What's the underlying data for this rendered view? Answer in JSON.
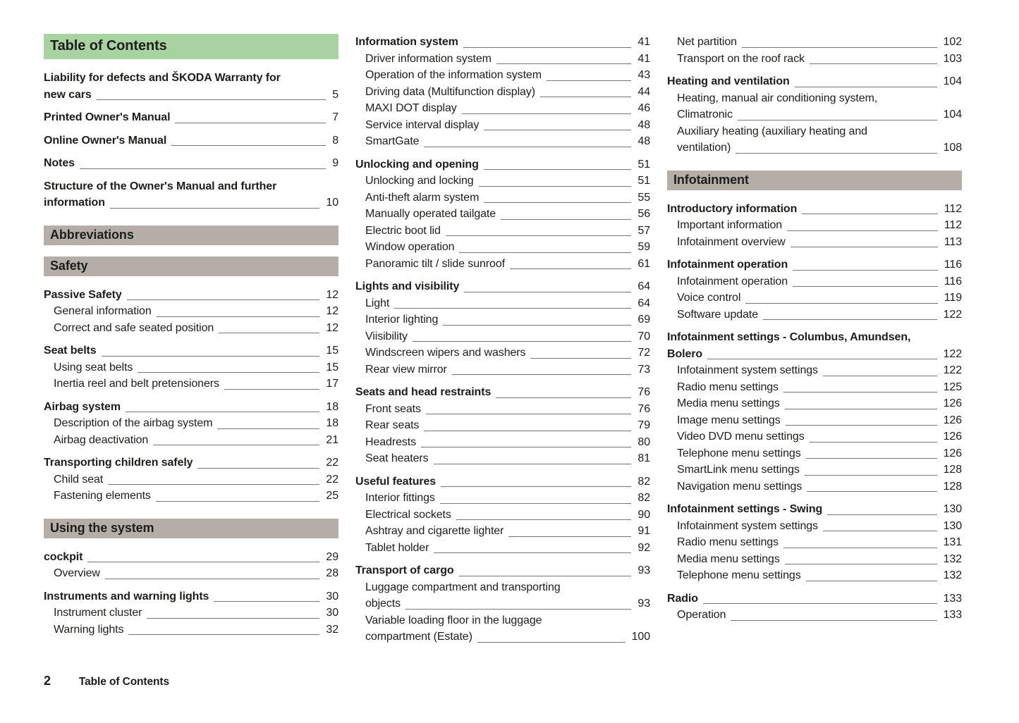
{
  "colors": {
    "title_bar_bg": "#a8d2a2",
    "section_bar_bg": "#b5aea7",
    "leader_line": "#757575",
    "text": "#1d1d1b"
  },
  "footer": {
    "page_number": "2",
    "label": "Table of Contents"
  },
  "columns": [
    {
      "blocks": [
        {
          "bar": "Table of Contents",
          "style": "title"
        },
        {
          "group": [
            {
              "bold": true,
              "lines": [
                "Liability for defects and ŠKODA Warranty for",
                "new cars"
              ],
              "page": "5"
            }
          ]
        },
        {
          "group": [
            {
              "bold": true,
              "lines": [
                "Printed Owner's Manual"
              ],
              "page": "7"
            }
          ]
        },
        {
          "group": [
            {
              "bold": true,
              "lines": [
                "Online Owner's Manual"
              ],
              "page": "8"
            }
          ]
        },
        {
          "group": [
            {
              "bold": true,
              "lines": [
                "Notes"
              ],
              "page": "9"
            }
          ]
        },
        {
          "group": [
            {
              "bold": true,
              "lines": [
                "Structure of the Owner's Manual and further",
                "information"
              ],
              "page": "10"
            }
          ]
        },
        {
          "bar": "Abbreviations",
          "style": "section"
        },
        {
          "bar": "Safety",
          "style": "section"
        },
        {
          "group": [
            {
              "bold": true,
              "lines": [
                "Passive Safety"
              ],
              "page": "12"
            },
            {
              "bold": false,
              "lines": [
                "General information"
              ],
              "page": "12"
            },
            {
              "bold": false,
              "lines": [
                "Correct and safe seated position"
              ],
              "page": "12"
            }
          ]
        },
        {
          "group": [
            {
              "bold": true,
              "lines": [
                "Seat belts"
              ],
              "page": "15"
            },
            {
              "bold": false,
              "lines": [
                "Using seat belts"
              ],
              "page": "15"
            },
            {
              "bold": false,
              "lines": [
                "Inertia reel and belt pretensioners"
              ],
              "page": "17"
            }
          ]
        },
        {
          "group": [
            {
              "bold": true,
              "lines": [
                "Airbag system"
              ],
              "page": "18"
            },
            {
              "bold": false,
              "lines": [
                "Description of the airbag system"
              ],
              "page": "18"
            },
            {
              "bold": false,
              "lines": [
                "Airbag deactivation"
              ],
              "page": "21"
            }
          ]
        },
        {
          "group": [
            {
              "bold": true,
              "lines": [
                "Transporting children safely"
              ],
              "page": "22"
            },
            {
              "bold": false,
              "lines": [
                "Child seat"
              ],
              "page": "22"
            },
            {
              "bold": false,
              "lines": [
                "Fastening elements"
              ],
              "page": "25"
            }
          ]
        },
        {
          "bar": "Using the system",
          "style": "section"
        },
        {
          "group": [
            {
              "bold": true,
              "lines": [
                "cockpit"
              ],
              "page": "29"
            },
            {
              "bold": false,
              "lines": [
                "Overview"
              ],
              "page": "28"
            }
          ]
        },
        {
          "group": [
            {
              "bold": true,
              "lines": [
                "Instruments and warning lights"
              ],
              "page": "30"
            },
            {
              "bold": false,
              "lines": [
                "Instrument cluster"
              ],
              "page": "30"
            },
            {
              "bold": false,
              "lines": [
                "Warning lights"
              ],
              "page": "32"
            }
          ]
        }
      ]
    },
    {
      "blocks": [
        {
          "group": [
            {
              "bold": true,
              "lines": [
                "Information system"
              ],
              "page": "41"
            },
            {
              "bold": false,
              "lines": [
                "Driver information system"
              ],
              "page": "41"
            },
            {
              "bold": false,
              "lines": [
                "Operation of the information system"
              ],
              "page": "43"
            },
            {
              "bold": false,
              "lines": [
                "Driving data (Multifunction display)"
              ],
              "page": "44"
            },
            {
              "bold": false,
              "lines": [
                "MAXI DOT display"
              ],
              "page": "46"
            },
            {
              "bold": false,
              "lines": [
                "Service interval display"
              ],
              "page": "48"
            },
            {
              "bold": false,
              "lines": [
                "SmartGate"
              ],
              "page": "48"
            }
          ]
        },
        {
          "group": [
            {
              "bold": true,
              "lines": [
                "Unlocking and opening"
              ],
              "page": "51"
            },
            {
              "bold": false,
              "lines": [
                "Unlocking and locking"
              ],
              "page": "51"
            },
            {
              "bold": false,
              "lines": [
                "Anti-theft alarm system"
              ],
              "page": "55"
            },
            {
              "bold": false,
              "lines": [
                "Manually operated tailgate"
              ],
              "page": "56"
            },
            {
              "bold": false,
              "lines": [
                "Electric boot lid"
              ],
              "page": "57"
            },
            {
              "bold": false,
              "lines": [
                "Window operation"
              ],
              "page": "59"
            },
            {
              "bold": false,
              "lines": [
                "Panoramic tilt / slide sunroof"
              ],
              "page": "61"
            }
          ]
        },
        {
          "group": [
            {
              "bold": true,
              "lines": [
                "Lights and visibility"
              ],
              "page": "64"
            },
            {
              "bold": false,
              "lines": [
                "Light"
              ],
              "page": "64"
            },
            {
              "bold": false,
              "lines": [
                "Interior lighting"
              ],
              "page": "69"
            },
            {
              "bold": false,
              "lines": [
                "Viisibility"
              ],
              "page": "70"
            },
            {
              "bold": false,
              "lines": [
                "Windscreen wipers and washers"
              ],
              "page": "72"
            },
            {
              "bold": false,
              "lines": [
                "Rear view mirror"
              ],
              "page": "73"
            }
          ]
        },
        {
          "group": [
            {
              "bold": true,
              "lines": [
                "Seats and head restraints"
              ],
              "page": "76"
            },
            {
              "bold": false,
              "lines": [
                "Front seats"
              ],
              "page": "76"
            },
            {
              "bold": false,
              "lines": [
                "Rear seats"
              ],
              "page": "79"
            },
            {
              "bold": false,
              "lines": [
                "Headrests"
              ],
              "page": "80"
            },
            {
              "bold": false,
              "lines": [
                "Seat heaters"
              ],
              "page": "81"
            }
          ]
        },
        {
          "group": [
            {
              "bold": true,
              "lines": [
                "Useful features"
              ],
              "page": "82"
            },
            {
              "bold": false,
              "lines": [
                "Interior fittings"
              ],
              "page": "82"
            },
            {
              "bold": false,
              "lines": [
                "Electrical sockets"
              ],
              "page": "90"
            },
            {
              "bold": false,
              "lines": [
                "Ashtray and cigarette lighter"
              ],
              "page": "91"
            },
            {
              "bold": false,
              "lines": [
                "Tablet holder"
              ],
              "page": "92"
            }
          ]
        },
        {
          "group": [
            {
              "bold": true,
              "lines": [
                "Transport of cargo"
              ],
              "page": "93"
            },
            {
              "bold": false,
              "lines": [
                "Luggage compartment and transporting",
                "objects"
              ],
              "page": "93"
            },
            {
              "bold": false,
              "lines": [
                "Variable loading floor in the luggage",
                "compartment (Estate)"
              ],
              "page": "100"
            }
          ]
        }
      ]
    },
    {
      "blocks": [
        {
          "group": [
            {
              "bold": false,
              "lines": [
                "Net partition"
              ],
              "page": "102"
            },
            {
              "bold": false,
              "lines": [
                "Transport on the roof rack"
              ],
              "page": "103"
            }
          ]
        },
        {
          "group": [
            {
              "bold": true,
              "lines": [
                "Heating and ventilation"
              ],
              "page": "104"
            },
            {
              "bold": false,
              "lines": [
                "Heating, manual air conditioning system,",
                "Climatronic"
              ],
              "page": "104"
            },
            {
              "bold": false,
              "lines": [
                "Auxiliary heating (auxiliary heating and",
                "ventilation)"
              ],
              "page": "108"
            }
          ]
        },
        {
          "bar": "Infotainment",
          "style": "section"
        },
        {
          "group": [
            {
              "bold": true,
              "lines": [
                "Introductory information"
              ],
              "page": "112"
            },
            {
              "bold": false,
              "lines": [
                "Important information"
              ],
              "page": "112"
            },
            {
              "bold": false,
              "lines": [
                "Infotainment overview"
              ],
              "page": "113"
            }
          ]
        },
        {
          "group": [
            {
              "bold": true,
              "lines": [
                "Infotainment operation"
              ],
              "page": "116"
            },
            {
              "bold": false,
              "lines": [
                "Infotainment operation"
              ],
              "page": "116"
            },
            {
              "bold": false,
              "lines": [
                "Voice control"
              ],
              "page": "119"
            },
            {
              "bold": false,
              "lines": [
                "Software update"
              ],
              "page": "122"
            }
          ]
        },
        {
          "group": [
            {
              "bold": true,
              "lines": [
                "Infotainment settings - Columbus, Amundsen,",
                "Bolero"
              ],
              "page": "122"
            },
            {
              "bold": false,
              "lines": [
                "Infotainment system settings"
              ],
              "page": "122"
            },
            {
              "bold": false,
              "lines": [
                "Radio menu settings"
              ],
              "page": "125"
            },
            {
              "bold": false,
              "lines": [
                "Media menu settings"
              ],
              "page": "126"
            },
            {
              "bold": false,
              "lines": [
                "Image menu settings"
              ],
              "page": "126"
            },
            {
              "bold": false,
              "lines": [
                "Video DVD menu settings"
              ],
              "page": "126"
            },
            {
              "bold": false,
              "lines": [
                "Telephone menu settings"
              ],
              "page": "126"
            },
            {
              "bold": false,
              "lines": [
                "SmartLink menu settings"
              ],
              "page": "128"
            },
            {
              "bold": false,
              "lines": [
                "Navigation menu settings"
              ],
              "page": "128"
            }
          ]
        },
        {
          "group": [
            {
              "bold": true,
              "lines": [
                "Infotainment settings - Swing"
              ],
              "page": "130"
            },
            {
              "bold": false,
              "lines": [
                "Infotainment system settings"
              ],
              "page": "130"
            },
            {
              "bold": false,
              "lines": [
                "Radio menu settings"
              ],
              "page": "131"
            },
            {
              "bold": false,
              "lines": [
                "Media menu settings"
              ],
              "page": "132"
            },
            {
              "bold": false,
              "lines": [
                "Telephone menu settings"
              ],
              "page": "132"
            }
          ]
        },
        {
          "group": [
            {
              "bold": true,
              "lines": [
                "Radio"
              ],
              "page": "133"
            },
            {
              "bold": false,
              "lines": [
                "Operation"
              ],
              "page": "133"
            }
          ]
        }
      ]
    }
  ]
}
